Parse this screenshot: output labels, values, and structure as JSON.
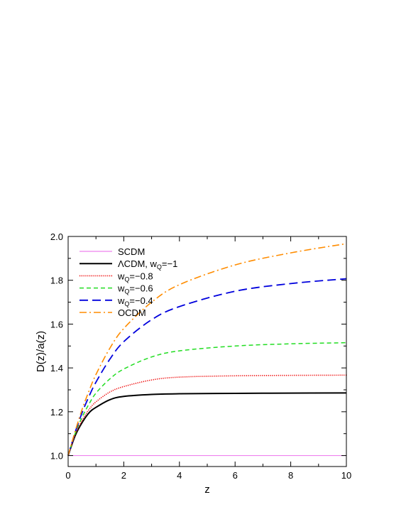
{
  "chart_data": {
    "type": "line",
    "xlabel": "z",
    "ylabel": "D(z)/a(z)",
    "xlim": [
      0,
      10
    ],
    "ylim": [
      0.95,
      2.0
    ],
    "xticks": [
      0,
      2,
      4,
      6,
      8,
      10
    ],
    "yticks": [
      1.0,
      1.2,
      1.4,
      1.6,
      1.8,
      2.0
    ],
    "xtick_labels": [
      "0",
      "2",
      "4",
      "6",
      "8",
      "10"
    ],
    "ytick_labels": [
      "1.0",
      "1.2",
      "1.4",
      "1.6",
      "1.8",
      "2.0"
    ],
    "grid": false,
    "legend_position": "top-left",
    "series": [
      {
        "name": "SCDM",
        "legend_main": "SCDM",
        "legend_sub": "",
        "legend_tail": "",
        "color": "#ee82ee",
        "dash": "solid",
        "x": [
          0,
          10
        ],
        "y": [
          1.0,
          1.0
        ]
      },
      {
        "name": "ΛCDM, wQ=−1",
        "legend_main": "ΛCDM, w",
        "legend_sub": "Q",
        "legend_tail": "=−1",
        "color": "#000000",
        "dash": "solid",
        "x": [
          0,
          0.25,
          0.5,
          0.75,
          1,
          1.5,
          2,
          3,
          4,
          6,
          8,
          10
        ],
        "y": [
          1.0,
          1.09,
          1.15,
          1.195,
          1.22,
          1.255,
          1.27,
          1.279,
          1.282,
          1.284,
          1.285,
          1.286
        ]
      },
      {
        "name": "wQ=−0.8",
        "legend_main": "w",
        "legend_sub": "Q",
        "legend_tail": "=−0.8",
        "color": "#ee0000",
        "dash": "dotted",
        "x": [
          0,
          0.25,
          0.5,
          0.75,
          1,
          1.5,
          2,
          3,
          4,
          6,
          8,
          10
        ],
        "y": [
          1.0,
          1.095,
          1.16,
          1.21,
          1.245,
          1.29,
          1.315,
          1.345,
          1.358,
          1.364,
          1.366,
          1.367
        ]
      },
      {
        "name": "wQ=−0.6",
        "legend_main": "w",
        "legend_sub": "Q",
        "legend_tail": "=−0.6",
        "color": "#22dd22",
        "dash": "dashed",
        "x": [
          0,
          0.25,
          0.5,
          0.75,
          1,
          1.5,
          2,
          3,
          4,
          6,
          8,
          10
        ],
        "y": [
          1.0,
          1.1,
          1.175,
          1.235,
          1.285,
          1.35,
          1.395,
          1.45,
          1.478,
          1.5,
          1.51,
          1.515
        ]
      },
      {
        "name": "wQ=−0.4",
        "legend_main": "w",
        "legend_sub": "Q",
        "legend_tail": "=−0.4",
        "color": "#0000dd",
        "dash": "longdash",
        "x": [
          0,
          0.25,
          0.5,
          0.75,
          1,
          1.5,
          2,
          3,
          4,
          6,
          8,
          10
        ],
        "y": [
          1.0,
          1.105,
          1.195,
          1.27,
          1.335,
          1.44,
          1.52,
          1.62,
          1.68,
          1.75,
          1.785,
          1.807
        ]
      },
      {
        "name": "OCDM",
        "legend_main": "OCDM",
        "legend_sub": "",
        "legend_tail": "",
        "color": "#ff8c00",
        "dash": "dashdot",
        "x": [
          0,
          0.25,
          0.5,
          0.75,
          1,
          1.5,
          2,
          3,
          4,
          6,
          8,
          10
        ],
        "y": [
          1.0,
          1.11,
          1.21,
          1.295,
          1.37,
          1.49,
          1.58,
          1.7,
          1.78,
          1.87,
          1.925,
          1.967
        ]
      }
    ]
  }
}
